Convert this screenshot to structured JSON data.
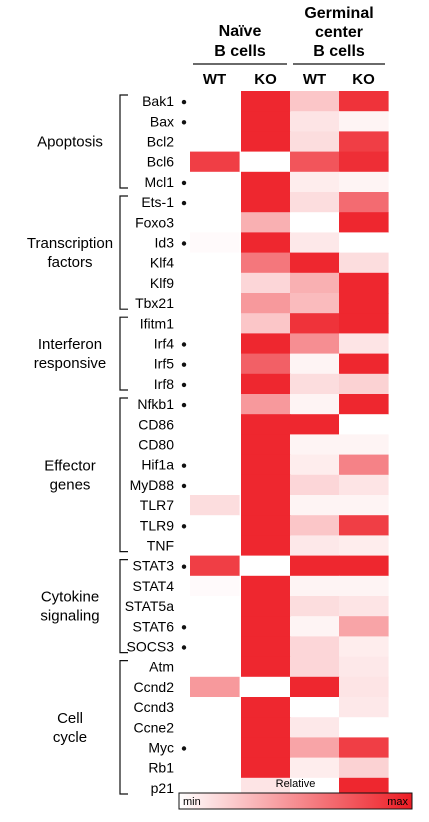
{
  "chart_data": {
    "type": "heatmap",
    "column_groups": [
      {
        "label_lines": [
          "Naïve",
          "B cells"
        ],
        "columns": [
          "WT",
          "KO"
        ]
      },
      {
        "label_lines": [
          "Germinal",
          "center",
          "B cells"
        ],
        "columns": [
          "WT",
          "KO"
        ]
      }
    ],
    "row_groups": [
      {
        "label_lines": [
          "Apoptosis"
        ],
        "rows": [
          {
            "gene": "Bak1",
            "dot": true,
            "values": [
              0.0,
              0.95,
              0.25,
              0.9
            ]
          },
          {
            "gene": "Bax",
            "dot": true,
            "values": [
              0.0,
              0.95,
              0.12,
              0.05
            ]
          },
          {
            "gene": "Bcl2",
            "dot": false,
            "values": [
              0.0,
              0.95,
              0.15,
              0.85
            ]
          },
          {
            "gene": "Bcl6",
            "dot": false,
            "values": [
              0.85,
              0.0,
              0.75,
              0.92
            ]
          },
          {
            "gene": "Mcl1",
            "dot": true,
            "values": [
              0.0,
              0.95,
              0.08,
              0.05
            ]
          }
        ]
      },
      {
        "label_lines": [
          "Transcription",
          "factors"
        ],
        "rows": [
          {
            "gene": "Ets-1",
            "dot": true,
            "values": [
              0.0,
              0.95,
              0.15,
              0.65
            ]
          },
          {
            "gene": "Foxo3",
            "dot": false,
            "values": [
              0.0,
              0.35,
              0.0,
              0.95
            ]
          },
          {
            "gene": "Id3",
            "dot": true,
            "values": [
              0.02,
              0.95,
              0.1,
              0.0
            ]
          },
          {
            "gene": "Klf4",
            "dot": false,
            "values": [
              0.0,
              0.6,
              0.95,
              0.15
            ]
          },
          {
            "gene": "Klf9",
            "dot": false,
            "values": [
              0.0,
              0.18,
              0.35,
              0.95
            ]
          },
          {
            "gene": "Tbx21",
            "dot": false,
            "values": [
              0.0,
              0.45,
              0.3,
              0.95
            ]
          }
        ]
      },
      {
        "label_lines": [
          "Interferon",
          "responsive"
        ],
        "rows": [
          {
            "gene": "Ifitm1",
            "dot": false,
            "values": [
              0.0,
              0.25,
              0.9,
              0.95
            ]
          },
          {
            "gene": "Irf4",
            "dot": true,
            "values": [
              0.0,
              0.95,
              0.5,
              0.12
            ]
          },
          {
            "gene": "Irf5",
            "dot": true,
            "values": [
              0.0,
              0.7,
              0.05,
              0.95
            ]
          },
          {
            "gene": "Irf8",
            "dot": true,
            "values": [
              0.0,
              0.95,
              0.15,
              0.2
            ]
          }
        ]
      },
      {
        "label_lines": [
          "Effector",
          "genes"
        ],
        "rows": [
          {
            "gene": "Nfkb1",
            "dot": true,
            "values": [
              0.0,
              0.45,
              0.05,
              0.95
            ]
          },
          {
            "gene": "CD86",
            "dot": false,
            "values": [
              0.0,
              0.95,
              0.95,
              0.0
            ]
          },
          {
            "gene": "CD80",
            "dot": false,
            "values": [
              0.0,
              0.95,
              0.05,
              0.05
            ]
          },
          {
            "gene": "Hif1a",
            "dot": true,
            "values": [
              0.0,
              0.95,
              0.08,
              0.55
            ]
          },
          {
            "gene": "MyD88",
            "dot": true,
            "values": [
              0.0,
              0.95,
              0.18,
              0.12
            ]
          },
          {
            "gene": "TLR7",
            "dot": false,
            "values": [
              0.15,
              0.95,
              0.05,
              0.05
            ]
          },
          {
            "gene": "TLR9",
            "dot": true,
            "values": [
              0.0,
              0.95,
              0.25,
              0.85
            ]
          },
          {
            "gene": "TNF",
            "dot": false,
            "values": [
              0.0,
              0.95,
              0.1,
              0.08
            ]
          }
        ]
      },
      {
        "label_lines": [
          "Cytokine",
          "signaling"
        ],
        "rows": [
          {
            "gene": "STAT3",
            "dot": true,
            "values": [
              0.85,
              0.0,
              0.95,
              0.95
            ]
          },
          {
            "gene": "STAT4",
            "dot": false,
            "values": [
              0.02,
              0.95,
              0.05,
              0.05
            ]
          },
          {
            "gene": "STAT5a",
            "dot": false,
            "values": [
              0.0,
              0.95,
              0.15,
              0.12
            ]
          },
          {
            "gene": "STAT6",
            "dot": true,
            "values": [
              0.0,
              0.95,
              0.05,
              0.4
            ]
          },
          {
            "gene": "SOCS3",
            "dot": true,
            "values": [
              0.0,
              0.95,
              0.18,
              0.08
            ]
          }
        ]
      },
      {
        "label_lines": [
          "Cell",
          "cycle"
        ],
        "rows": [
          {
            "gene": "Atm",
            "dot": false,
            "values": [
              0.0,
              0.95,
              0.18,
              0.1
            ]
          },
          {
            "gene": "Ccnd2",
            "dot": false,
            "values": [
              0.45,
              0.0,
              0.95,
              0.12
            ]
          },
          {
            "gene": "Ccnd3",
            "dot": false,
            "values": [
              0.0,
              0.95,
              0.0,
              0.1
            ]
          },
          {
            "gene": "Ccne2",
            "dot": false,
            "values": [
              0.0,
              0.95,
              0.1,
              0.0
            ]
          },
          {
            "gene": "Myc",
            "dot": true,
            "values": [
              0.0,
              0.95,
              0.4,
              0.85
            ]
          },
          {
            "gene": "Rb1",
            "dot": false,
            "values": [
              0.0,
              0.95,
              0.08,
              0.2
            ]
          },
          {
            "gene": "p21",
            "dot": false,
            "values": [
              0.0,
              0.12,
              0.0,
              0.95
            ]
          }
        ]
      }
    ],
    "legend": {
      "title": "Relative",
      "min_label": "min",
      "max_label": "max"
    },
    "colors": {
      "min": "#ffffff",
      "max": "#ed1c24"
    }
  }
}
